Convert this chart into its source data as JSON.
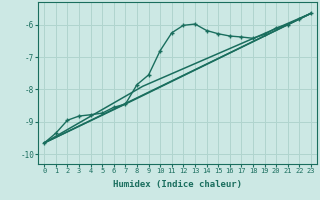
{
  "title": "",
  "xlabel": "Humidex (Indice chaleur)",
  "bg_color": "#cce8e4",
  "grid_color": "#b0d4ce",
  "line_color": "#1a6e5e",
  "xlim": [
    -0.5,
    23.5
  ],
  "ylim": [
    -10.3,
    -5.3
  ],
  "yticks": [
    -10,
    -9,
    -8,
    -7,
    -6
  ],
  "xticks": [
    0,
    1,
    2,
    3,
    4,
    5,
    6,
    7,
    8,
    9,
    10,
    11,
    12,
    13,
    14,
    15,
    16,
    17,
    18,
    19,
    20,
    21,
    22,
    23
  ],
  "line1_x": [
    0,
    1,
    2,
    3,
    4,
    5,
    6,
    7,
    8,
    9,
    10,
    11,
    12,
    13,
    14,
    15,
    16,
    17,
    18,
    19,
    20,
    21,
    22,
    23
  ],
  "line1_y": [
    -9.65,
    -9.35,
    -8.95,
    -8.82,
    -8.78,
    -8.73,
    -8.55,
    -8.45,
    -7.85,
    -7.55,
    -6.8,
    -6.25,
    -6.02,
    -5.98,
    -6.18,
    -6.28,
    -6.35,
    -6.38,
    -6.42,
    -6.3,
    -6.1,
    -6.0,
    -5.82,
    -5.65
  ],
  "line2_x": [
    0,
    23
  ],
  "line2_y": [
    -9.65,
    -5.65
  ],
  "line3_x": [
    0,
    8.5,
    23
  ],
  "line3_y": [
    -9.65,
    -7.9,
    -5.65
  ],
  "line4_x": [
    0,
    7,
    23
  ],
  "line4_y": [
    -9.65,
    -8.45,
    -5.65
  ]
}
